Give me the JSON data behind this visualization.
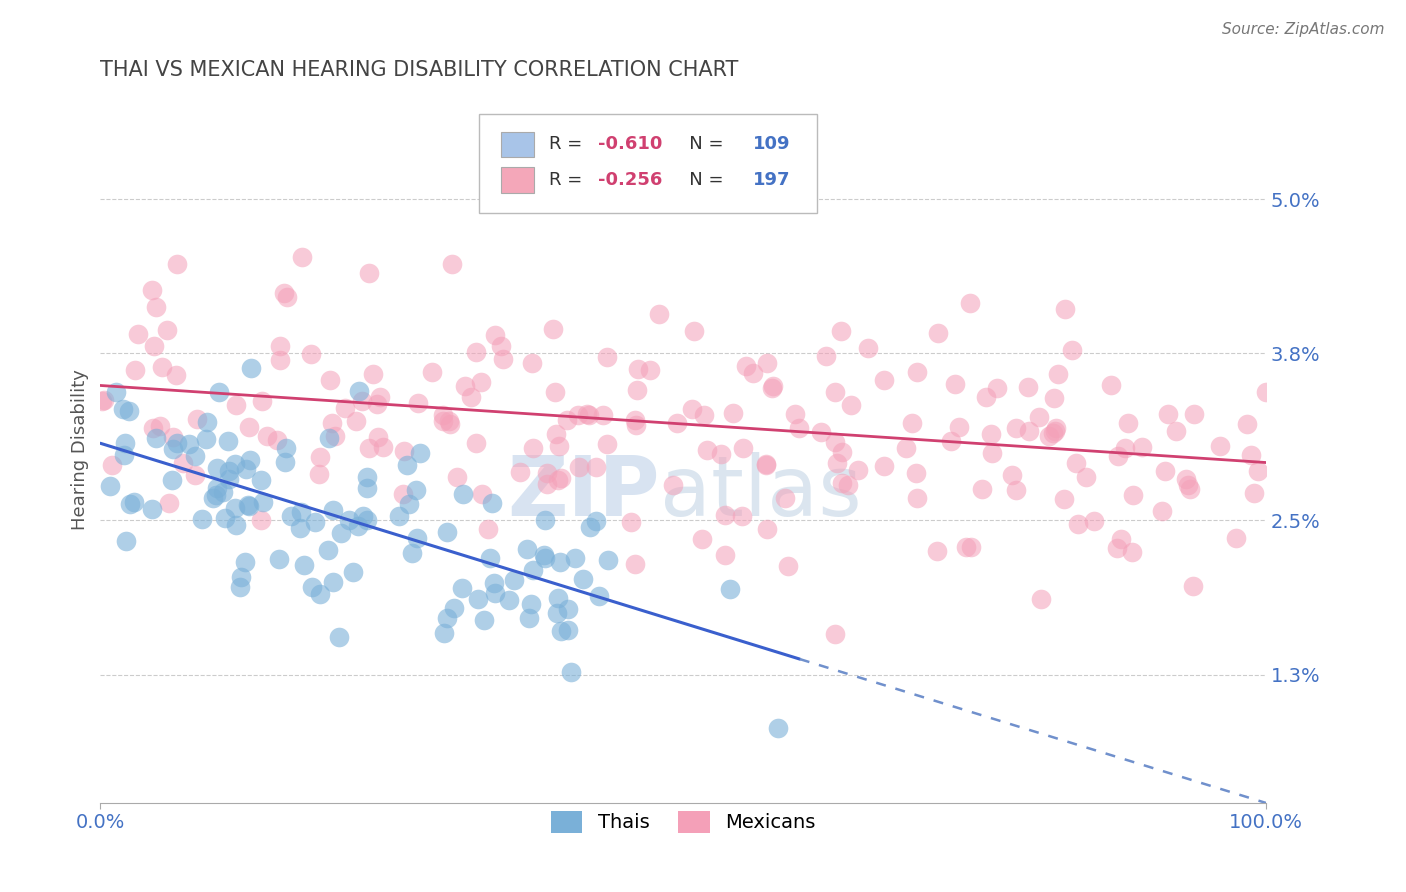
{
  "title": "THAI VS MEXICAN HEARING DISABILITY CORRELATION CHART",
  "source_text": "Source: ZipAtlas.com",
  "ylabel": "Hearing Disability",
  "xlim": [
    0,
    100
  ],
  "ylim": [
    0.3,
    5.8
  ],
  "yticks": [
    1.3,
    2.5,
    3.8,
    5.0
  ],
  "ytick_labels": [
    "1.3%",
    "2.5%",
    "3.8%",
    "5.0%"
  ],
  "xtick_labels": [
    "0.0%",
    "100.0%"
  ],
  "legend_box": {
    "thai_color": "#a8c4e8",
    "mexican_color": "#f4a7b9"
  },
  "thai_color": "#7ab0d8",
  "mexican_color": "#f4a0b8",
  "trend_thai_color": "#3a5fcd",
  "trend_mexican_color": "#d04070",
  "trend_ext_color": "#7090cc",
  "background_color": "#ffffff",
  "grid_color": "#cccccc",
  "title_color": "#444444",
  "axis_label_color": "#4472c4",
  "watermark_color": "#c8d8ec",
  "thai_intercept": 3.1,
  "thai_slope": -0.028,
  "thai_x_end": 60,
  "mexican_intercept": 3.55,
  "mexican_slope": -0.006,
  "legend_r_color": "#d04070",
  "legend_n_color": "#4472c4"
}
